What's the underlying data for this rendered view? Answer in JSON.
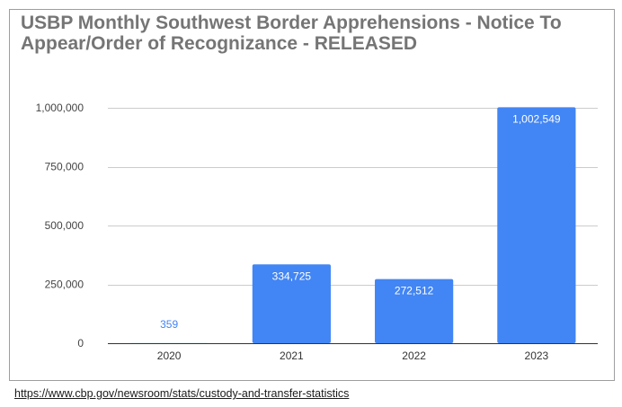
{
  "chart_data": {
    "type": "bar",
    "title": "USBP Monthly Southwest Border Apprehensions - Notice To Appear/Order of Recognizance - RELEASED",
    "categories": [
      "2020",
      "2021",
      "2022",
      "2023"
    ],
    "values": [
      359,
      334725,
      272512,
      1002549
    ],
    "value_labels": [
      "359",
      "334,725",
      "272,512",
      "1,002,549"
    ],
    "xlabel": "",
    "ylabel": "",
    "ylim": [
      0,
      1000000
    ],
    "yticks": [
      0,
      250000,
      500000,
      750000,
      1000000
    ],
    "ytick_labels": [
      "0",
      "250,000",
      "500,000",
      "750,000",
      "1,000,000"
    ],
    "grid": true,
    "legend": "none",
    "bar_color": "#4285f4",
    "label_color_outside": "#4285f4",
    "label_color_inside": "#ffffff"
  },
  "footer": {
    "source_link": "https://www.cbp.gov/newsroom/stats/custody-and-transfer-statistics"
  }
}
